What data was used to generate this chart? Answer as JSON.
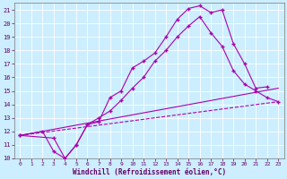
{
  "xlabel": "Windchill (Refroidissement éolien,°C)",
  "bg_color": "#cceeff",
  "grid_color": "#aaddcc",
  "line_color": "#aa00aa",
  "xlim": [
    -0.5,
    23.5
  ],
  "ylim": [
    10,
    21.5
  ],
  "xticks": [
    0,
    1,
    2,
    3,
    4,
    5,
    6,
    7,
    8,
    9,
    10,
    11,
    12,
    13,
    14,
    15,
    16,
    17,
    18,
    19,
    20,
    21,
    22,
    23
  ],
  "yticks": [
    10,
    11,
    12,
    13,
    14,
    15,
    16,
    17,
    18,
    19,
    20,
    21
  ],
  "line1_x": [
    0,
    2,
    3,
    4,
    5,
    6,
    7,
    8,
    9,
    10,
    11,
    12,
    13,
    14,
    15,
    16,
    17,
    18,
    19,
    20,
    21,
    22
  ],
  "line1_y": [
    11.7,
    12.0,
    10.5,
    10.0,
    11.0,
    12.5,
    12.7,
    14.5,
    15.0,
    16.7,
    17.2,
    17.8,
    19.0,
    20.3,
    21.1,
    21.3,
    20.8,
    21.0,
    18.5,
    17.0,
    15.2,
    15.3
  ],
  "line2_x": [
    0,
    3,
    4,
    5,
    6,
    7,
    8,
    9,
    10,
    11,
    12,
    13,
    14,
    15,
    16,
    17,
    18,
    19,
    20,
    21,
    22,
    23
  ],
  "line2_y": [
    11.7,
    11.5,
    10.0,
    11.0,
    12.5,
    13.0,
    13.5,
    14.3,
    15.2,
    16.0,
    17.2,
    18.0,
    19.0,
    19.8,
    20.5,
    19.3,
    18.3,
    16.5,
    15.5,
    15.0,
    14.5,
    14.2
  ],
  "line3_x": [
    0,
    23
  ],
  "line3_y": [
    11.7,
    15.2
  ],
  "line4_x": [
    0,
    23
  ],
  "line4_y": [
    11.7,
    14.2
  ]
}
